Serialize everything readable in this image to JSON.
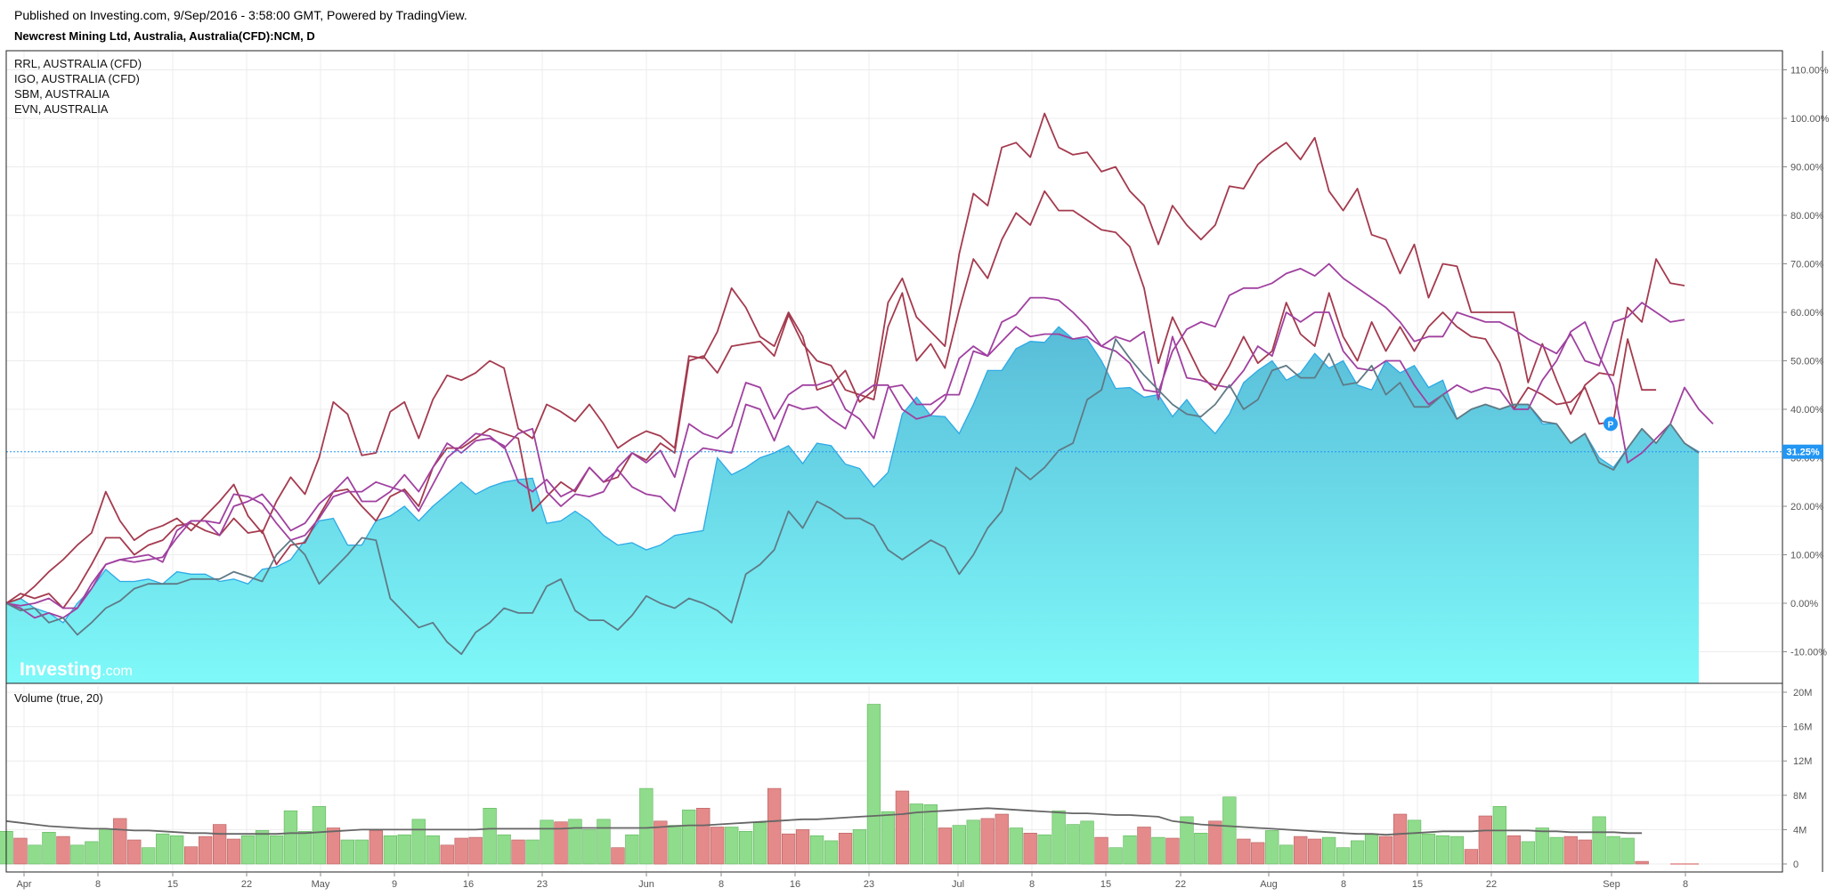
{
  "header": {
    "published": "Published on Investing.com, 9/Sep/2016 - 3:58:00 GMT, Powered by TradingView.",
    "symbol": "Newcrest Mining Ltd, Australia, Australia(CFD):NCM, D"
  },
  "logo": {
    "bold": "Investing",
    "suffix": ".com"
  },
  "chart_data": [
    {
      "type": "area",
      "comparison_mode": "percent",
      "x_ticks": [
        "Apr",
        "8",
        "15",
        "22",
        "May",
        "9",
        "16",
        "23",
        "Jun",
        "8",
        "16",
        "23",
        "Jul",
        "8",
        "15",
        "22",
        "Aug",
        "8",
        "15",
        "22",
        "Sep",
        "8"
      ],
      "y_ticks": [
        "110.00%",
        "100.00%",
        "90.00%",
        "80.00%",
        "70.00%",
        "60.00%",
        "50.00%",
        "40.00%",
        "30.00%",
        "20.00%",
        "10.00%",
        "0.00%",
        "-10.00%"
      ],
      "ylim": [
        -16.5,
        114
      ],
      "current_value_label": "31.25%",
      "current_value": 31.25,
      "pin_label": "P",
      "main_series": {
        "fill_top_color": "#58bcd8",
        "fill_bottom_color": "#7ff9f9",
        "line_color": "#2da9e6",
        "values": [
          0,
          1,
          -1,
          -2,
          -4,
          0,
          3,
          7,
          4.5,
          4.5,
          5,
          4,
          6.5,
          6,
          6,
          4.5,
          5,
          4,
          7,
          7.5,
          9,
          13,
          17,
          17.5,
          12,
          12,
          17,
          18,
          20,
          17,
          20,
          22.5,
          25,
          22.5,
          24,
          25,
          25.5,
          25.8,
          16.5,
          17,
          19,
          17,
          14,
          12,
          12.5,
          11,
          12,
          14,
          14.5,
          15,
          30,
          26.5,
          28,
          30,
          31,
          32.5,
          28.8,
          33,
          32.5,
          28.7,
          27.8,
          24,
          27,
          39,
          42.5,
          38.7,
          38.5,
          35,
          41,
          48,
          48,
          52.5,
          54,
          53.8,
          57,
          54.5,
          54.5,
          50,
          44.3,
          44.5,
          42.5,
          43,
          38.5,
          42,
          38,
          35,
          39,
          45.5,
          48,
          50,
          46,
          47.5,
          51.5,
          48.5,
          50,
          45,
          44,
          50,
          47.5,
          49,
          44.5,
          46,
          38,
          40,
          41,
          40,
          41,
          41,
          37,
          37,
          33,
          35,
          30,
          28,
          32,
          36,
          33,
          37,
          33,
          31.25
        ]
      },
      "series": [
        {
          "name": "RRL, AUSTRALIA (CFD)",
          "color": "#a43a4e",
          "values": [
            0,
            1,
            3.5,
            6.5,
            9,
            12,
            14.5,
            23,
            17,
            13,
            15,
            16,
            17.5,
            15,
            18,
            21,
            24.5,
            18,
            14.5,
            21,
            26,
            22.5,
            30,
            41.5,
            39,
            30.5,
            31,
            39.5,
            41.5,
            34,
            42,
            47,
            46,
            47.5,
            50,
            48.5,
            36,
            34,
            41,
            39.5,
            37.5,
            41,
            37,
            32,
            34,
            35.5,
            34.5,
            32,
            51,
            50.5,
            56,
            65,
            61,
            55,
            53,
            60,
            55,
            44,
            45,
            48,
            41.5,
            44,
            62,
            67,
            59,
            56,
            53,
            72,
            84.5,
            82,
            94,
            95,
            92,
            101,
            94,
            92.5,
            93,
            89,
            90,
            85,
            82,
            74,
            82,
            78,
            75,
            78,
            86,
            85.5,
            90.5,
            93,
            95,
            91.5,
            96,
            85,
            81,
            85.5,
            76,
            75,
            68,
            74,
            63,
            70,
            69.5,
            60,
            60,
            60,
            60,
            45.5,
            53.5,
            46,
            39,
            45,
            47.5,
            47,
            61,
            58,
            71,
            66,
            65.5
          ]
        },
        {
          "name": "IGO, AUSTRALIA (CFD)",
          "color": "#a43a4e",
          "values": [
            0,
            2,
            1,
            2,
            -1,
            3,
            8,
            13.5,
            13.5,
            10,
            12,
            13,
            16,
            16.5,
            15,
            14,
            17.5,
            14.5,
            15,
            8,
            12,
            12.5,
            18,
            23,
            23.5,
            20,
            17,
            22,
            23.5,
            20,
            28,
            32,
            32,
            34,
            36,
            35,
            34,
            19,
            22,
            25,
            23,
            28,
            25,
            26,
            31,
            29.5,
            33,
            31,
            50,
            51,
            47.5,
            53,
            53.5,
            54,
            51,
            59.5,
            53.5,
            50,
            49,
            44,
            43,
            42,
            57,
            64,
            50,
            53.5,
            48.5,
            60.5,
            71,
            67,
            75,
            80.5,
            78,
            85,
            81,
            81,
            79,
            77,
            76.5,
            73.5,
            65,
            49.5,
            59,
            53,
            47,
            44,
            49,
            55,
            49.5,
            52,
            62,
            55.5,
            53,
            64,
            55,
            50,
            58,
            52,
            57,
            52,
            57,
            60,
            57,
            55,
            54.5,
            49.5,
            40,
            44.5,
            43,
            41,
            41.5,
            44.5,
            37,
            37.5,
            54.5,
            44,
            44
          ]
        },
        {
          "name": "SBM, AUSTRALIA",
          "color": "#a040a0",
          "values": [
            0,
            -0.5,
            0,
            1,
            -1,
            -1,
            4,
            8,
            9,
            8.5,
            9,
            9.5,
            13.5,
            17,
            17,
            14,
            20,
            21,
            22.5,
            19,
            15,
            16.5,
            20.5,
            23,
            26,
            21,
            21,
            23,
            26.5,
            23,
            28,
            33,
            31,
            33.5,
            34,
            32.5,
            25,
            23,
            25.5,
            22,
            23.5,
            28,
            25,
            27.5,
            24,
            22.5,
            22,
            19,
            29.5,
            32,
            31.5,
            31,
            41,
            40,
            33.5,
            41,
            40,
            40.5,
            38,
            36,
            43,
            45,
            45,
            40,
            38,
            38.8,
            42,
            50.5,
            53,
            51,
            54,
            57,
            55,
            55.5,
            55.5,
            54.5,
            55,
            53,
            55,
            54,
            56,
            42,
            55,
            46.5,
            46,
            45,
            44.5,
            48,
            53,
            51,
            60,
            58,
            60,
            60,
            52,
            48.5,
            48,
            50,
            50,
            45,
            41,
            43,
            45,
            43.5,
            44.5,
            44,
            40,
            40,
            46,
            50,
            56,
            58,
            51,
            45,
            29,
            31,
            34,
            37,
            44.5,
            40,
            37
          ]
        },
        {
          "name": "EVN, AUSTRALIA",
          "color": "#a040a0",
          "values": [
            0,
            -1,
            -3,
            -2,
            -3,
            -1,
            3,
            8,
            9,
            9.5,
            10,
            8.5,
            15,
            17,
            17,
            16.5,
            22.5,
            22,
            20.5,
            16.5,
            13,
            14,
            17.5,
            22,
            23,
            23,
            25,
            24,
            23,
            19,
            24.5,
            30,
            32.5,
            35,
            34.5,
            32,
            35,
            36,
            23,
            20,
            22.5,
            22,
            23,
            28,
            31,
            29,
            31.5,
            26,
            37,
            35,
            34,
            36.5,
            45.5,
            44.5,
            38,
            43,
            45,
            45,
            46,
            40,
            38,
            34,
            44.5,
            45,
            41,
            41,
            43,
            43,
            52,
            51,
            58,
            59.5,
            63,
            63,
            62.5,
            60,
            57,
            53,
            52,
            49.5,
            44,
            43.5,
            52,
            56.5,
            58,
            57,
            63.5,
            65,
            65,
            66,
            68,
            69,
            67.5,
            70,
            67,
            65,
            63,
            61,
            58,
            54,
            55,
            55,
            60,
            59,
            58,
            58,
            56.5,
            54.5,
            53,
            51.5,
            55.5,
            50,
            49,
            58,
            59,
            62,
            60,
            58,
            58.5
          ]
        },
        {
          "name": "",
          "color": "#5f7a86",
          "values": [
            0,
            -1.5,
            -1,
            -4,
            -3,
            -6.5,
            -4,
            -1,
            0.5,
            3,
            4,
            4,
            4,
            5,
            5,
            5,
            6.5,
            5.5,
            4.5,
            10,
            13,
            10,
            4,
            7,
            10,
            13.5,
            13,
            1,
            -2,
            -5,
            -4,
            -8,
            -10.5,
            -6,
            -4,
            -1,
            -2,
            -2,
            3.5,
            5,
            -1.5,
            -3.5,
            -3.5,
            -5.5,
            -2.5,
            1.5,
            0,
            -1,
            1,
            0,
            -1.5,
            -4,
            6,
            8,
            11,
            19,
            15.5,
            21,
            19.5,
            17.5,
            17.5,
            16,
            11,
            9,
            11,
            13,
            11.5,
            6,
            10,
            15.5,
            19,
            28,
            25.5,
            28,
            31.5,
            33,
            42,
            44,
            54.5,
            50.5,
            47,
            44,
            41,
            39,
            38.5,
            41,
            45,
            40,
            42,
            48,
            49,
            46.5,
            46.5,
            51.5,
            45,
            45.5,
            49,
            43,
            45.5,
            40.5,
            40.5,
            43,
            38,
            40,
            41,
            40,
            41,
            41,
            37.5,
            37,
            33,
            35,
            29,
            27.5,
            32,
            36,
            33,
            37,
            33,
            31
          ]
        }
      ],
      "legend_position": "top-left"
    },
    {
      "type": "bar",
      "title": "Volume (true, 20)",
      "y_ticks": [
        "20M",
        "16M",
        "12M",
        "8M",
        "4M",
        "0"
      ],
      "ylim": [
        0,
        20
      ],
      "unit": "M",
      "up_color": "#8fdc8c",
      "down_color": "#e48a8a",
      "ma_color": "#666666",
      "up_flags": [
        1,
        0,
        1,
        1,
        0,
        1,
        1,
        1,
        0,
        0,
        1,
        1,
        1,
        0,
        0,
        0,
        0,
        1,
        1,
        1,
        1,
        1,
        1,
        0,
        1,
        1,
        0,
        1,
        1,
        1,
        1,
        0,
        0,
        0,
        1,
        1,
        0,
        1,
        1,
        0,
        1,
        1,
        1,
        0,
        1,
        1,
        0,
        1,
        1,
        0,
        0,
        1,
        1,
        1,
        0,
        0,
        0,
        1,
        1,
        0,
        1,
        1,
        1,
        0,
        1,
        1,
        0,
        1,
        1,
        0,
        0,
        1,
        0,
        1,
        1,
        1,
        1,
        0,
        1,
        1,
        0,
        1,
        0,
        1,
        1,
        0,
        1,
        0,
        0,
        1,
        1,
        0,
        0,
        1,
        1,
        1,
        1,
        0,
        0,
        1,
        1,
        1,
        1,
        0,
        0,
        1,
        0,
        1,
        1,
        1,
        0,
        0,
        1,
        1,
        1,
        0,
        0,
        1,
        0,
        0,
        1,
        0
      ],
      "values": [
        3.8,
        3.0,
        2.2,
        3.7,
        3.2,
        2.2,
        2.6,
        4.1,
        5.3,
        2.8,
        1.9,
        3.5,
        3.3,
        2.0,
        3.2,
        4.6,
        2.9,
        3.3,
        3.9,
        3.3,
        6.2,
        3.8,
        6.7,
        4.2,
        2.8,
        2.8,
        3.9,
        3.3,
        3.4,
        5.2,
        3.3,
        2.2,
        3.0,
        3.1,
        6.5,
        3.4,
        2.8,
        2.8,
        5.1,
        4.9,
        5.2,
        4.0,
        5.2,
        1.9,
        3.4,
        8.8,
        5.0,
        4.5,
        6.3,
        6.5,
        4.3,
        4.3,
        3.8,
        4.8,
        8.8,
        3.5,
        4.0,
        3.3,
        2.7,
        3.6,
        4.0,
        18.6,
        6.1,
        8.5,
        7.0,
        6.9,
        4.2,
        4.5,
        5.1,
        5.3,
        5.8,
        4.2,
        3.6,
        3.4,
        6.2,
        4.6,
        5.0,
        3.1,
        1.9,
        3.3,
        4.3,
        3.1,
        3.0,
        5.5,
        3.6,
        5.0,
        7.8,
        2.9,
        2.5,
        3.9,
        2.2,
        3.2,
        2.9,
        3.1,
        1.9,
        2.7,
        3.5,
        3.2,
        5.8,
        5.1,
        3.5,
        3.3,
        3.2,
        1.7,
        5.6,
        6.7,
        3.3,
        2.6,
        4.2,
        3.1,
        3.2,
        2.8,
        5.5,
        3.2,
        3.0,
        0.3,
        0,
        0,
        0
      ],
      "ma_values": [
        5.0,
        4.8,
        4.6,
        4.4,
        4.3,
        4.2,
        4.1,
        4.1,
        4.0,
        3.9,
        3.9,
        3.8,
        3.7,
        3.6,
        3.6,
        3.5,
        3.5,
        3.5,
        3.5,
        3.5,
        3.6,
        3.6,
        3.7,
        3.8,
        3.9,
        4.0,
        4.0,
        4.0,
        4.0,
        4.0,
        4.0,
        4.0,
        4.0,
        4.0,
        4.1,
        4.1,
        4.1,
        4.1,
        4.1,
        4.1,
        4.2,
        4.2,
        4.2,
        4.2,
        4.2,
        4.2,
        4.3,
        4.4,
        4.5,
        4.5,
        4.6,
        4.7,
        4.8,
        4.9,
        5.0,
        5.1,
        5.2,
        5.2,
        5.3,
        5.4,
        5.5,
        5.6,
        5.7,
        5.8,
        6.0,
        6.1,
        6.2,
        6.3,
        6.4,
        6.5,
        6.4,
        6.3,
        6.2,
        6.1,
        6.0,
        5.9,
        5.9,
        5.8,
        5.7,
        5.7,
        5.6,
        5.5,
        5.0,
        4.8,
        4.6,
        4.5,
        4.4,
        4.3,
        4.2,
        4.1,
        4.0,
        3.9,
        3.8,
        3.7,
        3.6,
        3.5,
        3.5,
        3.4,
        3.5,
        3.6,
        3.7,
        3.8,
        3.8,
        3.8,
        3.9,
        3.9,
        3.9,
        3.9,
        3.8,
        3.8,
        3.7,
        3.7,
        3.7,
        3.7,
        3.6,
        3.6
      ]
    }
  ]
}
